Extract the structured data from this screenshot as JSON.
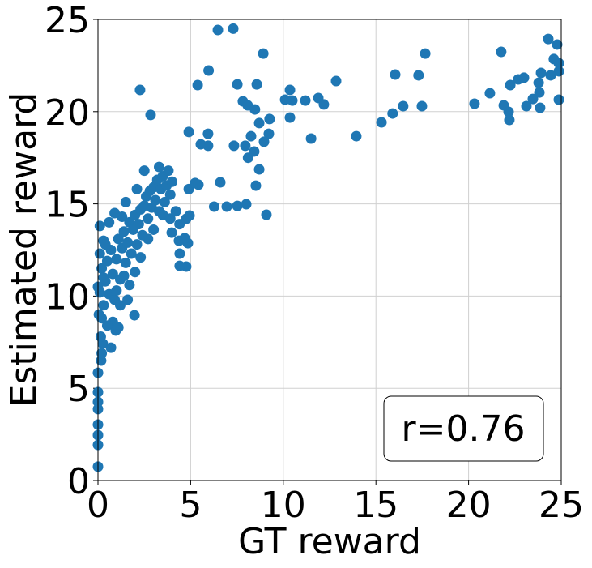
{
  "chart_data": {
    "type": "scatter",
    "x_label": "GT reward",
    "y_label": "Estimated reward",
    "annotation": "r=0.76",
    "color": "#1f77b4",
    "grid": true,
    "xlim": [
      0,
      25
    ],
    "ylim": [
      0,
      25
    ],
    "xticks": [
      0,
      5,
      10,
      15,
      20,
      25
    ],
    "yticks": [
      0,
      5,
      10,
      15,
      20,
      25
    ],
    "x": [
      6.47,
      7.3,
      8.92,
      2.27,
      5.38,
      5.97,
      7.52,
      8.57,
      2.84,
      7.82,
      8.08,
      8.47,
      9.26,
      10.1,
      10.36,
      10.49,
      10.36,
      11.19,
      11.89,
      12.19,
      12.85,
      11.5,
      13.94,
      15.3,
      15.9,
      16.04,
      16.47,
      17.3,
      17.48,
      17.66,
      20.32,
      21.15,
      21.76,
      21.9,
      22.16,
      22.2,
      22.25,
      22.68,
      22.99,
      23.12,
      23.47,
      23.78,
      23.82,
      23.86,
      23.91,
      24.3,
      24.43,
      24.6,
      24.78,
      24.87,
      24.87,
      24.87,
      4.9,
      5.55,
      5.94,
      5.94,
      7.34,
      8.1,
      7.95,
      8.26,
      8.43,
      8.7,
      8.7,
      8.96,
      9.22,
      4.9,
      5.24,
      5.42,
      6.6,
      6.27,
      6.95,
      7.52,
      8.0,
      8.52,
      9.09,
      4.76,
      4.94,
      3.98,
      4.41,
      4.76,
      4.41,
      4.85,
      4.37,
      4.68,
      0,
      0,
      0,
      0,
      0,
      0,
      0,
      0,
      0.17,
      0.26,
      1.97,
      0.96,
      0.1,
      0.2,
      0.3,
      0.1,
      0.4,
      0.2,
      0.5,
      0.3,
      0.6,
      0.1,
      0.7,
      0.8,
      0.9,
      0.4,
      1.0,
      1.1,
      1.2,
      1.3,
      1.4,
      1.5,
      1.6,
      1.7,
      1.8,
      1.9,
      2.0,
      2.1,
      2.2,
      2.3,
      2.4,
      2.5,
      2.6,
      2.7,
      2.8,
      2.9,
      3.0,
      3.1,
      3.2,
      3.3,
      3.4,
      3.5,
      3.6,
      3.7,
      3.8,
      3.9,
      4.0,
      2.5,
      1.5,
      1.3,
      0.6,
      0.3,
      0.0,
      0.05,
      0.15,
      0.2,
      0.8,
      1.2,
      1.7,
      2.0,
      2.3,
      2.7,
      3.0,
      3.5,
      3.9,
      4.2,
      4.4,
      1.0,
      1.4,
      0.5,
      0.9,
      1.6,
      2.1,
      3.3,
      1.1,
      0.7
    ],
    "y": [
      24.43,
      24.5,
      23.15,
      21.18,
      21.44,
      22.23,
      21.48,
      21.48,
      19.82,
      20.56,
      20.34,
      20.12,
      19.6,
      20.65,
      21.18,
      20.6,
      19.68,
      20.6,
      20.74,
      20.39,
      21.66,
      18.54,
      18.67,
      19.42,
      19.9,
      22.01,
      20.3,
      21.97,
      20.3,
      23.15,
      20.43,
      21.0,
      23.24,
      20.34,
      19.99,
      19.55,
      21.44,
      21.75,
      21.84,
      20.3,
      20.69,
      21.57,
      21.04,
      20.21,
      22.1,
      23.94,
      21.97,
      22.85,
      23.64,
      22.19,
      20.65,
      22.63,
      18.9,
      18.23,
      18.15,
      18.8,
      18.15,
      17.5,
      18.15,
      18.67,
      17.84,
      19.38,
      16.87,
      18.37,
      18.8,
      15.8,
      16.13,
      16.04,
      16.17,
      14.85,
      14.85,
      14.89,
      14.98,
      15.99,
      14.41,
      14.19,
      14.37,
      13.44,
      12.3,
      11.6,
      11.64,
      12.87,
      13.0,
      13.14,
      0.75,
      1.93,
      2.46,
      3.03,
      3.87,
      4.26,
      4.79,
      5.84,
      6.5,
      7.42,
      8.96,
      8.13,
      10.2,
      11.5,
      9.5,
      12.3,
      10.8,
      8.8,
      11.9,
      13.0,
      10.1,
      13.8,
      12.5,
      11.2,
      9.8,
      12.8,
      12.0,
      13.1,
      10.9,
      12.6,
      13.5,
      11.8,
      12.9,
      14.0,
      12.3,
      13.6,
      14.4,
      12.8,
      13.9,
      14.7,
      13.3,
      14.9,
      15.4,
      14.2,
      15.7,
      14.8,
      15.9,
      15.2,
      16.3,
      14.6,
      15.8,
      16.5,
      15.1,
      16.0,
      16.8,
      15.5,
      16.2,
      16.8,
      15.1,
      14.3,
      14.0,
      11.0,
      10.5,
      9.0,
      7.8,
      6.9,
      8.6,
      9.5,
      10.6,
      11.3,
      12.1,
      13.1,
      13.6,
      14.4,
      14.2,
      14.6,
      13.9,
      10.3,
      11.1,
      8.4,
      14.5,
      9.8,
      15.8,
      17.0,
      8.3,
      7.2
    ]
  }
}
